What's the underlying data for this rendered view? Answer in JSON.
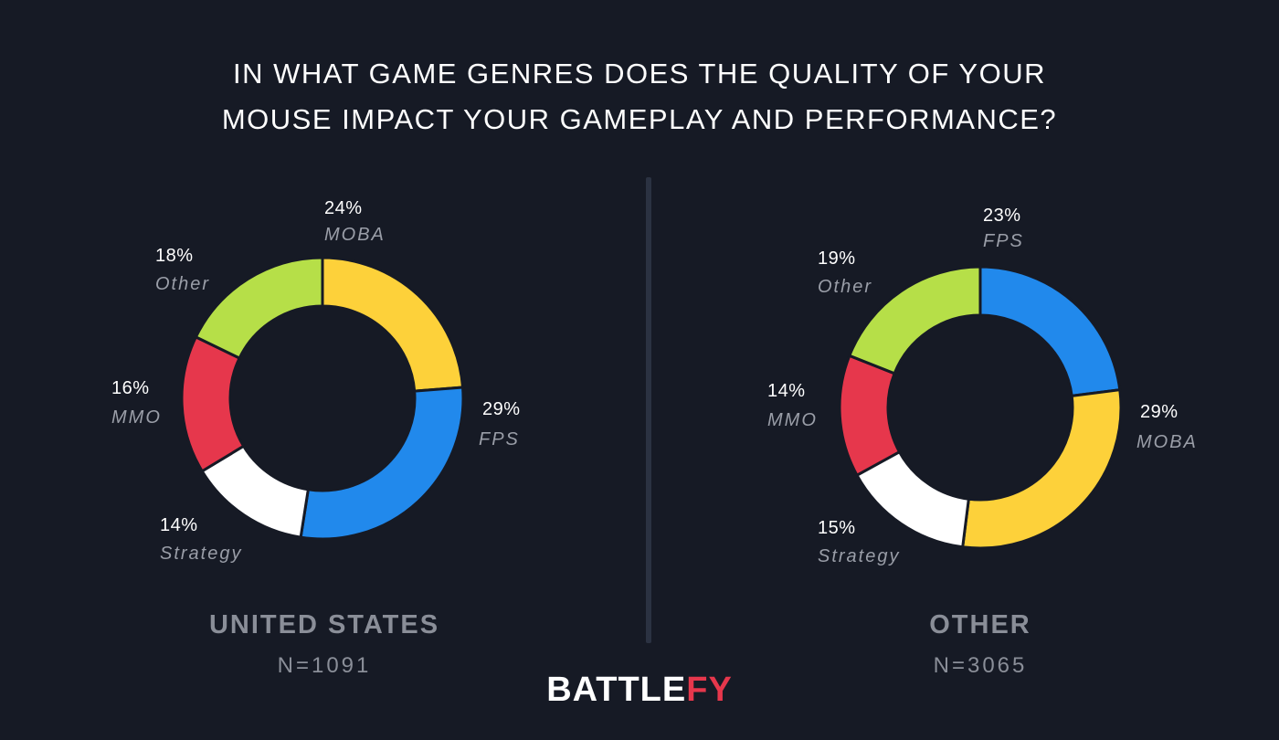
{
  "title": {
    "line1": "IN WHAT GAME GENRES DOES THE QUALITY OF YOUR",
    "line2": "MOUSE IMPACT YOUR GAMEPLAY AND PERFORMANCE?"
  },
  "logo": {
    "part1": "BATTLE",
    "part2": "FY"
  },
  "colors": {
    "MOBA": "#fdd13a",
    "FPS": "#2189ec",
    "Strategy": "#ffffff",
    "MMO": "#e6374c",
    "Other": "#b6df48",
    "background": "#161a25"
  },
  "chart_data": [
    {
      "type": "pie",
      "region": "UNITED STATES",
      "n_label": "N=1091",
      "slices": [
        {
          "label": "MOBA",
          "value": 24,
          "pct_label": "24%"
        },
        {
          "label": "FPS",
          "value": 29,
          "pct_label": "29%"
        },
        {
          "label": "Strategy",
          "value": 14,
          "pct_label": "14%"
        },
        {
          "label": "MMO",
          "value": 16,
          "pct_label": "16%"
        },
        {
          "label": "Other",
          "value": 18,
          "pct_label": "18%"
        }
      ]
    },
    {
      "type": "pie",
      "region": "OTHER",
      "n_label": "N=3065",
      "slices": [
        {
          "label": "FPS",
          "value": 23,
          "pct_label": "23%"
        },
        {
          "label": "MOBA",
          "value": 29,
          "pct_label": "29%"
        },
        {
          "label": "Strategy",
          "value": 15,
          "pct_label": "15%"
        },
        {
          "label": "MMO",
          "value": 14,
          "pct_label": "14%"
        },
        {
          "label": "Other",
          "value": 19,
          "pct_label": "19%"
        }
      ]
    }
  ]
}
